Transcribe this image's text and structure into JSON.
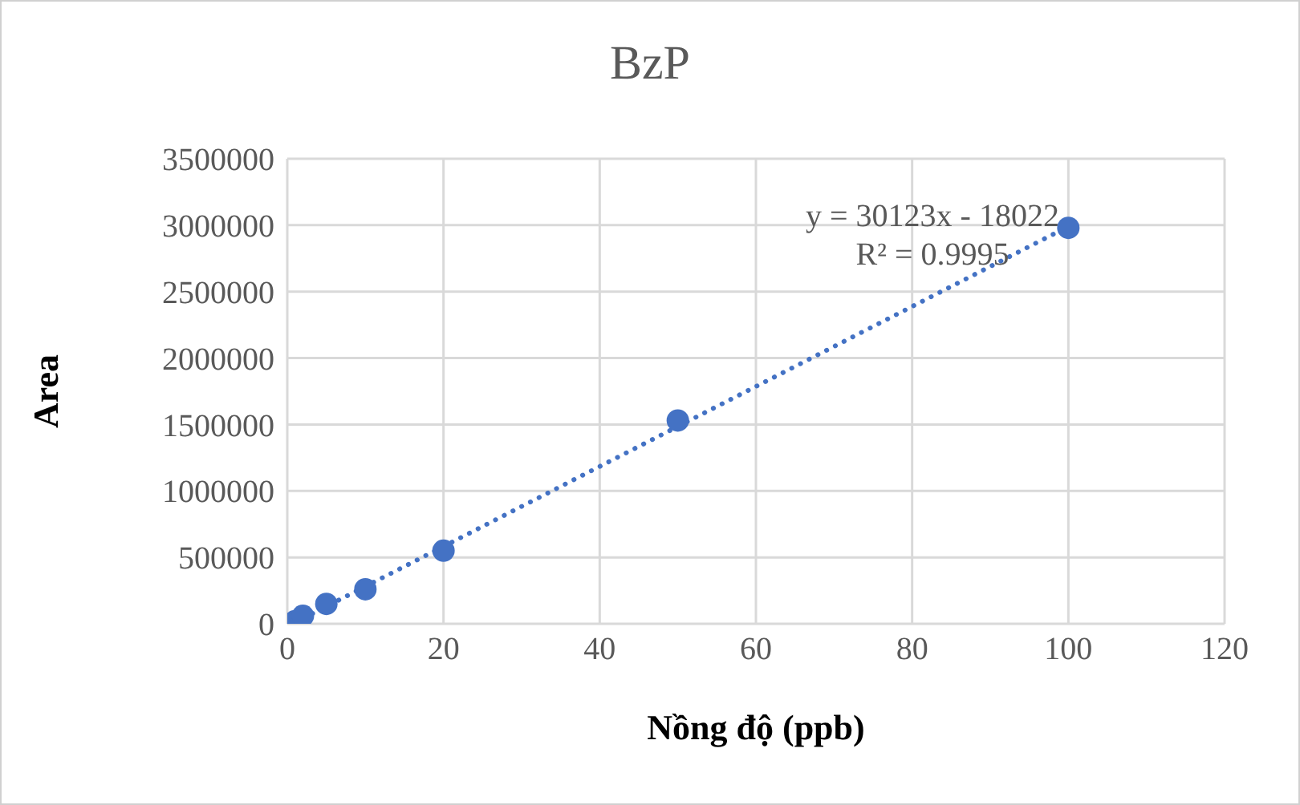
{
  "chart_data": {
    "type": "scatter",
    "title": "BzP",
    "xlabel": "Nồng độ (ppb)",
    "ylabel": "Area",
    "x": [
      1,
      2,
      5,
      10,
      20,
      50,
      100
    ],
    "series": [
      {
        "color": "#4472c4",
        "marker": "circle",
        "values": [
          20000,
          60000,
          150000,
          260000,
          550000,
          1530000,
          2980000
        ]
      },
      {
        "type": "line",
        "color": "#4472c4",
        "x": [
          1,
          100
        ],
        "values": [
          10000,
          2990000
        ],
        "line_style": "dotted"
      }
    ],
    "annotations": [
      "y = 30123x - 18022",
      "R² = 0.9995"
    ],
    "xlim": [
      0,
      120
    ],
    "xticks": [
      0,
      20,
      40,
      60,
      80,
      100,
      120
    ],
    "ylim": [
      0,
      3500000
    ],
    "yticks": [
      0,
      500000,
      1000000,
      1500000,
      2000000,
      2500000,
      3000000,
      3500000
    ],
    "grid": true,
    "legend": false
  }
}
